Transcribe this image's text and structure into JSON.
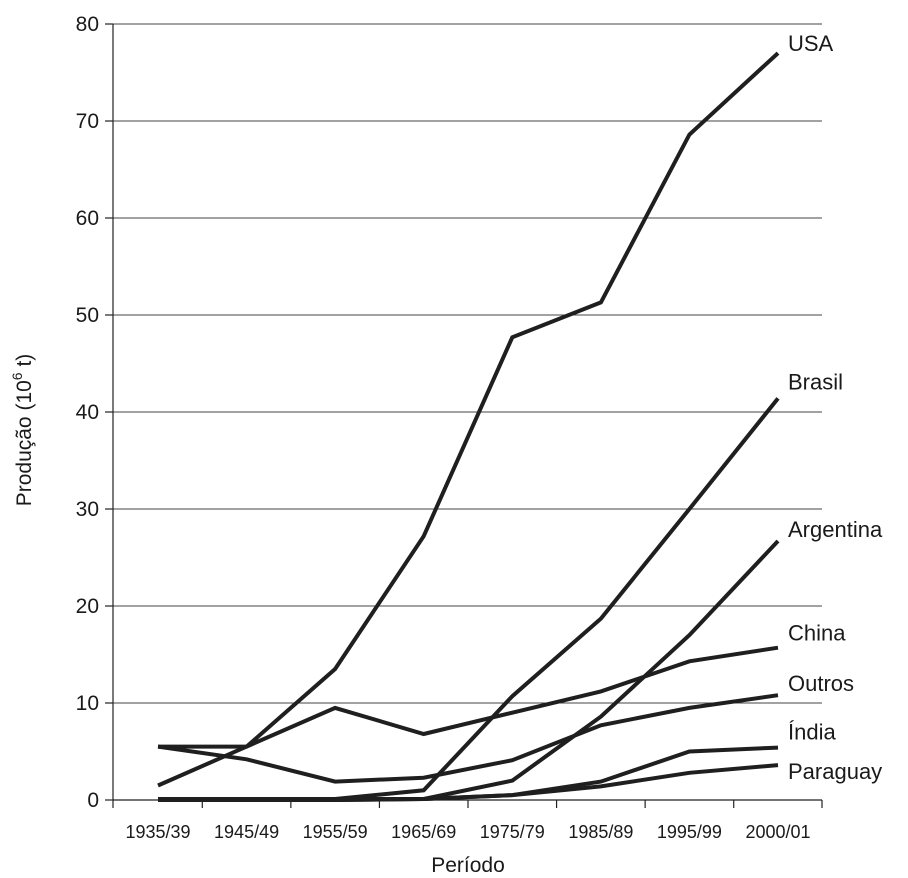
{
  "chart_data": {
    "type": "line",
    "xlabel": "Período",
    "ylabel": "Produção (10",
    "ylabel_sup": "6",
    "ylabel_suffix": " t)",
    "ylim": [
      0,
      80
    ],
    "yticks": [
      0,
      10,
      20,
      30,
      40,
      50,
      60,
      70,
      80
    ],
    "grid": true,
    "categories": [
      "1935/39",
      "1945/49",
      "1955/59",
      "1965/69",
      "1975/79",
      "1985/89",
      "1995/99",
      "2000/01"
    ],
    "series": [
      {
        "name": "USA",
        "values": [
          1.5,
          5.5,
          13.5,
          27.2,
          47.7,
          51.3,
          68.6,
          77.0
        ]
      },
      {
        "name": "Brasil",
        "values": [
          0.1,
          0.1,
          0.1,
          1.0,
          10.7,
          18.7,
          30.0,
          41.4
        ]
      },
      {
        "name": "Argentina",
        "values": [
          0.0,
          0.0,
          0.0,
          0.1,
          2.0,
          8.6,
          17.0,
          26.7
        ]
      },
      {
        "name": "China",
        "values": [
          5.5,
          5.5,
          9.5,
          6.8,
          9.0,
          11.2,
          14.3,
          15.7
        ]
      },
      {
        "name": "Outros",
        "values": [
          5.5,
          4.2,
          1.9,
          2.3,
          4.1,
          7.7,
          9.5,
          10.8
        ]
      },
      {
        "name": "Índia",
        "values": [
          0.1,
          0.1,
          0.1,
          0.1,
          0.5,
          1.9,
          5.0,
          5.4
        ]
      },
      {
        "name": "Paraguay",
        "values": [
          0.0,
          0.0,
          0.0,
          0.1,
          0.5,
          1.4,
          2.8,
          3.6
        ]
      }
    ]
  },
  "colors": {
    "line": "#1f1f1f",
    "accent_segment": "#2c2c5a"
  }
}
